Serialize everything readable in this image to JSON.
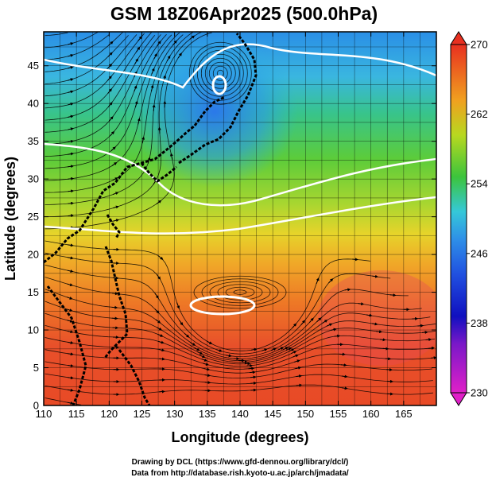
{
  "title": "GSM 18Z06Apr2025 (500.0hPa)",
  "x_axis": {
    "label": "Longitude (degrees)",
    "ticks": [
      "110",
      "115",
      "120",
      "125",
      "130",
      "135",
      "140",
      "145",
      "150",
      "155",
      "160",
      "165"
    ]
  },
  "y_axis": {
    "label": "Latitude  (degrees)",
    "ticks": [
      "0",
      "5",
      "10",
      "15",
      "20",
      "25",
      "30",
      "35",
      "40",
      "45"
    ]
  },
  "colorbar": {
    "ticks": [
      "230",
      "238",
      "246",
      "254",
      "262",
      "270"
    ],
    "colors": [
      "#e020c8",
      "#1010c0",
      "#2e8fe8",
      "#35c8d8",
      "#3cc43c",
      "#d8d820",
      "#f09020",
      "#e83020"
    ]
  },
  "credits": {
    "line1": "Drawing by DCL (https://www.gfd-dennou.org/library/dcl/)",
    "line2": "Data from http://database.rish.kyoto-u.ac.jp/arch/jmadata/"
  }
}
